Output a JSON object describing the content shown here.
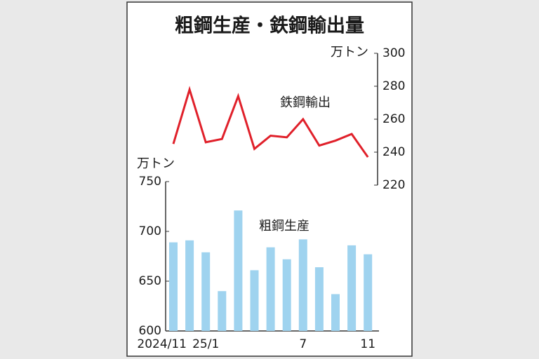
{
  "chart_data": {
    "type": "bar",
    "title": "粗鋼生産・鉄鋼輸出量",
    "categories": [
      "2024/11",
      null,
      "25/1",
      null,
      null,
      null,
      null,
      null,
      "7",
      null,
      null,
      null,
      "11"
    ],
    "ylabel": "万トン",
    "y2label": "万トン",
    "series": [
      {
        "name": "粗鋼生産",
        "color": "#9fd3ef",
        "values": [
          689,
          691,
          679,
          640,
          721,
          661,
          684,
          672,
          692,
          664,
          637,
          686,
          677
        ]
      },
      {
        "name": "鉄鋼輸出",
        "color": "#e0202a",
        "type": "line",
        "axis": "y2",
        "values": [
          245,
          278,
          246,
          248,
          274,
          242,
          250,
          249,
          260,
          244,
          247,
          251,
          237
        ]
      }
    ],
    "ylim": [
      600,
      750
    ],
    "yticks": [
      600,
      650,
      700,
      750
    ],
    "y2lim": [
      220,
      300
    ],
    "y2ticks": [
      220,
      240,
      260,
      280,
      300
    ]
  }
}
